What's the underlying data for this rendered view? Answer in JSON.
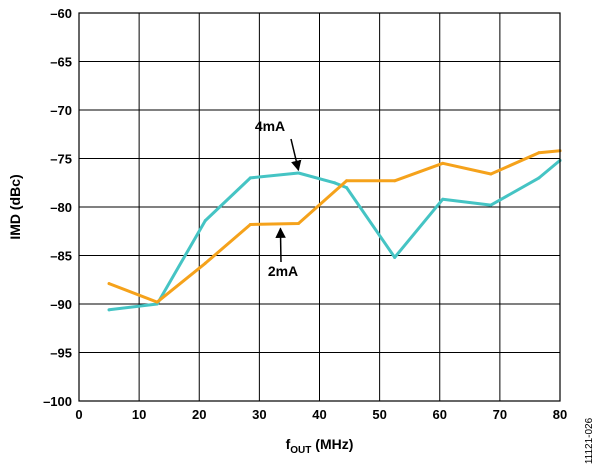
{
  "chart_data": {
    "type": "line",
    "xlabel": {
      "main": "f",
      "sub": "OUT",
      "rest": " (MHz)"
    },
    "ylabel": "IMD (dBc)",
    "xlim": [
      0,
      80
    ],
    "ylim": [
      -100,
      -60
    ],
    "xticks": [
      0,
      10,
      20,
      30,
      40,
      50,
      60,
      70,
      80
    ],
    "yticks": [
      -60,
      -65,
      -70,
      -75,
      -80,
      -85,
      -90,
      -95,
      -100
    ],
    "x_tick_labels": [
      "0",
      "10",
      "20",
      "30",
      "40",
      "50",
      "60",
      "70",
      "80"
    ],
    "y_tick_labels": [
      "–60",
      "–65",
      "–70",
      "–75",
      "–80",
      "–85",
      "–90",
      "–95",
      "–100"
    ],
    "grid": true,
    "series": [
      {
        "name": "4mA",
        "color": "#45C4C4",
        "x": [
          5,
          13,
          21,
          28.5,
          36.5,
          42.5,
          44.5,
          52.5,
          60.5,
          68.5,
          76.5,
          80
        ],
        "y": [
          -90.6,
          -90,
          -81.4,
          -77,
          -76.5,
          -77.5,
          -78,
          -85.2,
          -79.2,
          -79.8,
          -77,
          -75.2
        ]
      },
      {
        "name": "2mA",
        "color": "#F5A21B",
        "x": [
          5,
          13,
          21,
          28.5,
          36.5,
          44.5,
          52.5,
          60.5,
          68.5,
          76.5,
          80
        ],
        "y": [
          -87.9,
          -89.8,
          -85.8,
          -81.8,
          -81.7,
          -77.3,
          -77.3,
          -75.5,
          -76.6,
          -74.4,
          -74.2
        ]
      }
    ],
    "annotations": [
      {
        "text": "4mA",
        "series": "4mA"
      },
      {
        "text": "2mA",
        "series": "2mA"
      }
    ],
    "figure_id": "11121-026"
  }
}
